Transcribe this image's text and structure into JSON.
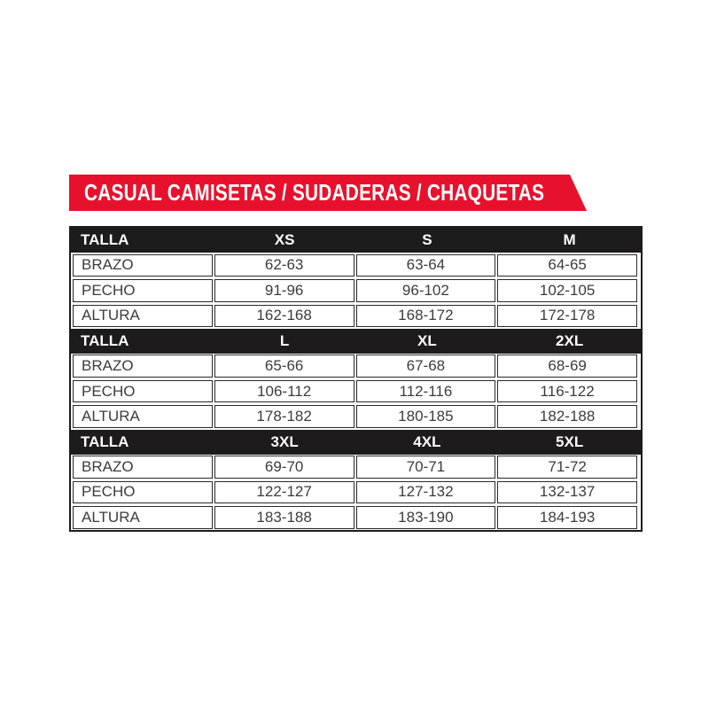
{
  "banner": {
    "title": "CASUAL CAMISETAS / SUDADERAS / CHAQUETAS"
  },
  "chart_data": {
    "type": "table",
    "title": "CASUAL CAMISETAS / SUDADERAS / CHAQUETAS",
    "header_label": "TALLA",
    "measurement_labels": [
      "BRAZO",
      "PECHO",
      "ALTURA"
    ],
    "blocks": [
      {
        "sizes": [
          "XS",
          "S",
          "M"
        ],
        "rows": [
          {
            "label": "BRAZO",
            "values": [
              "62-63",
              "63-64",
              "64-65"
            ]
          },
          {
            "label": "PECHO",
            "values": [
              "91-96",
              "96-102",
              "102-105"
            ]
          },
          {
            "label": "ALTURA",
            "values": [
              "162-168",
              "168-172",
              "172-178"
            ]
          }
        ]
      },
      {
        "sizes": [
          "L",
          "XL",
          "2XL"
        ],
        "rows": [
          {
            "label": "BRAZO",
            "values": [
              "65-66",
              "67-68",
              "68-69"
            ]
          },
          {
            "label": "PECHO",
            "values": [
              "106-112",
              "112-116",
              "116-122"
            ]
          },
          {
            "label": "ALTURA",
            "values": [
              "178-182",
              "180-185",
              "182-188"
            ]
          }
        ]
      },
      {
        "sizes": [
          "3XL",
          "4XL",
          "5XL"
        ],
        "rows": [
          {
            "label": "BRAZO",
            "values": [
              "69-70",
              "70-71",
              "71-72"
            ]
          },
          {
            "label": "PECHO",
            "values": [
              "122-127",
              "127-132",
              "132-137"
            ]
          },
          {
            "label": "ALTURA",
            "values": [
              "183-188",
              "183-190",
              "184-193"
            ]
          }
        ]
      }
    ]
  },
  "colors": {
    "banner_red": "#e8112d",
    "header_black": "#1d1b1c",
    "cell_border": "#2a2829",
    "value_text": "#3c3c3c"
  }
}
